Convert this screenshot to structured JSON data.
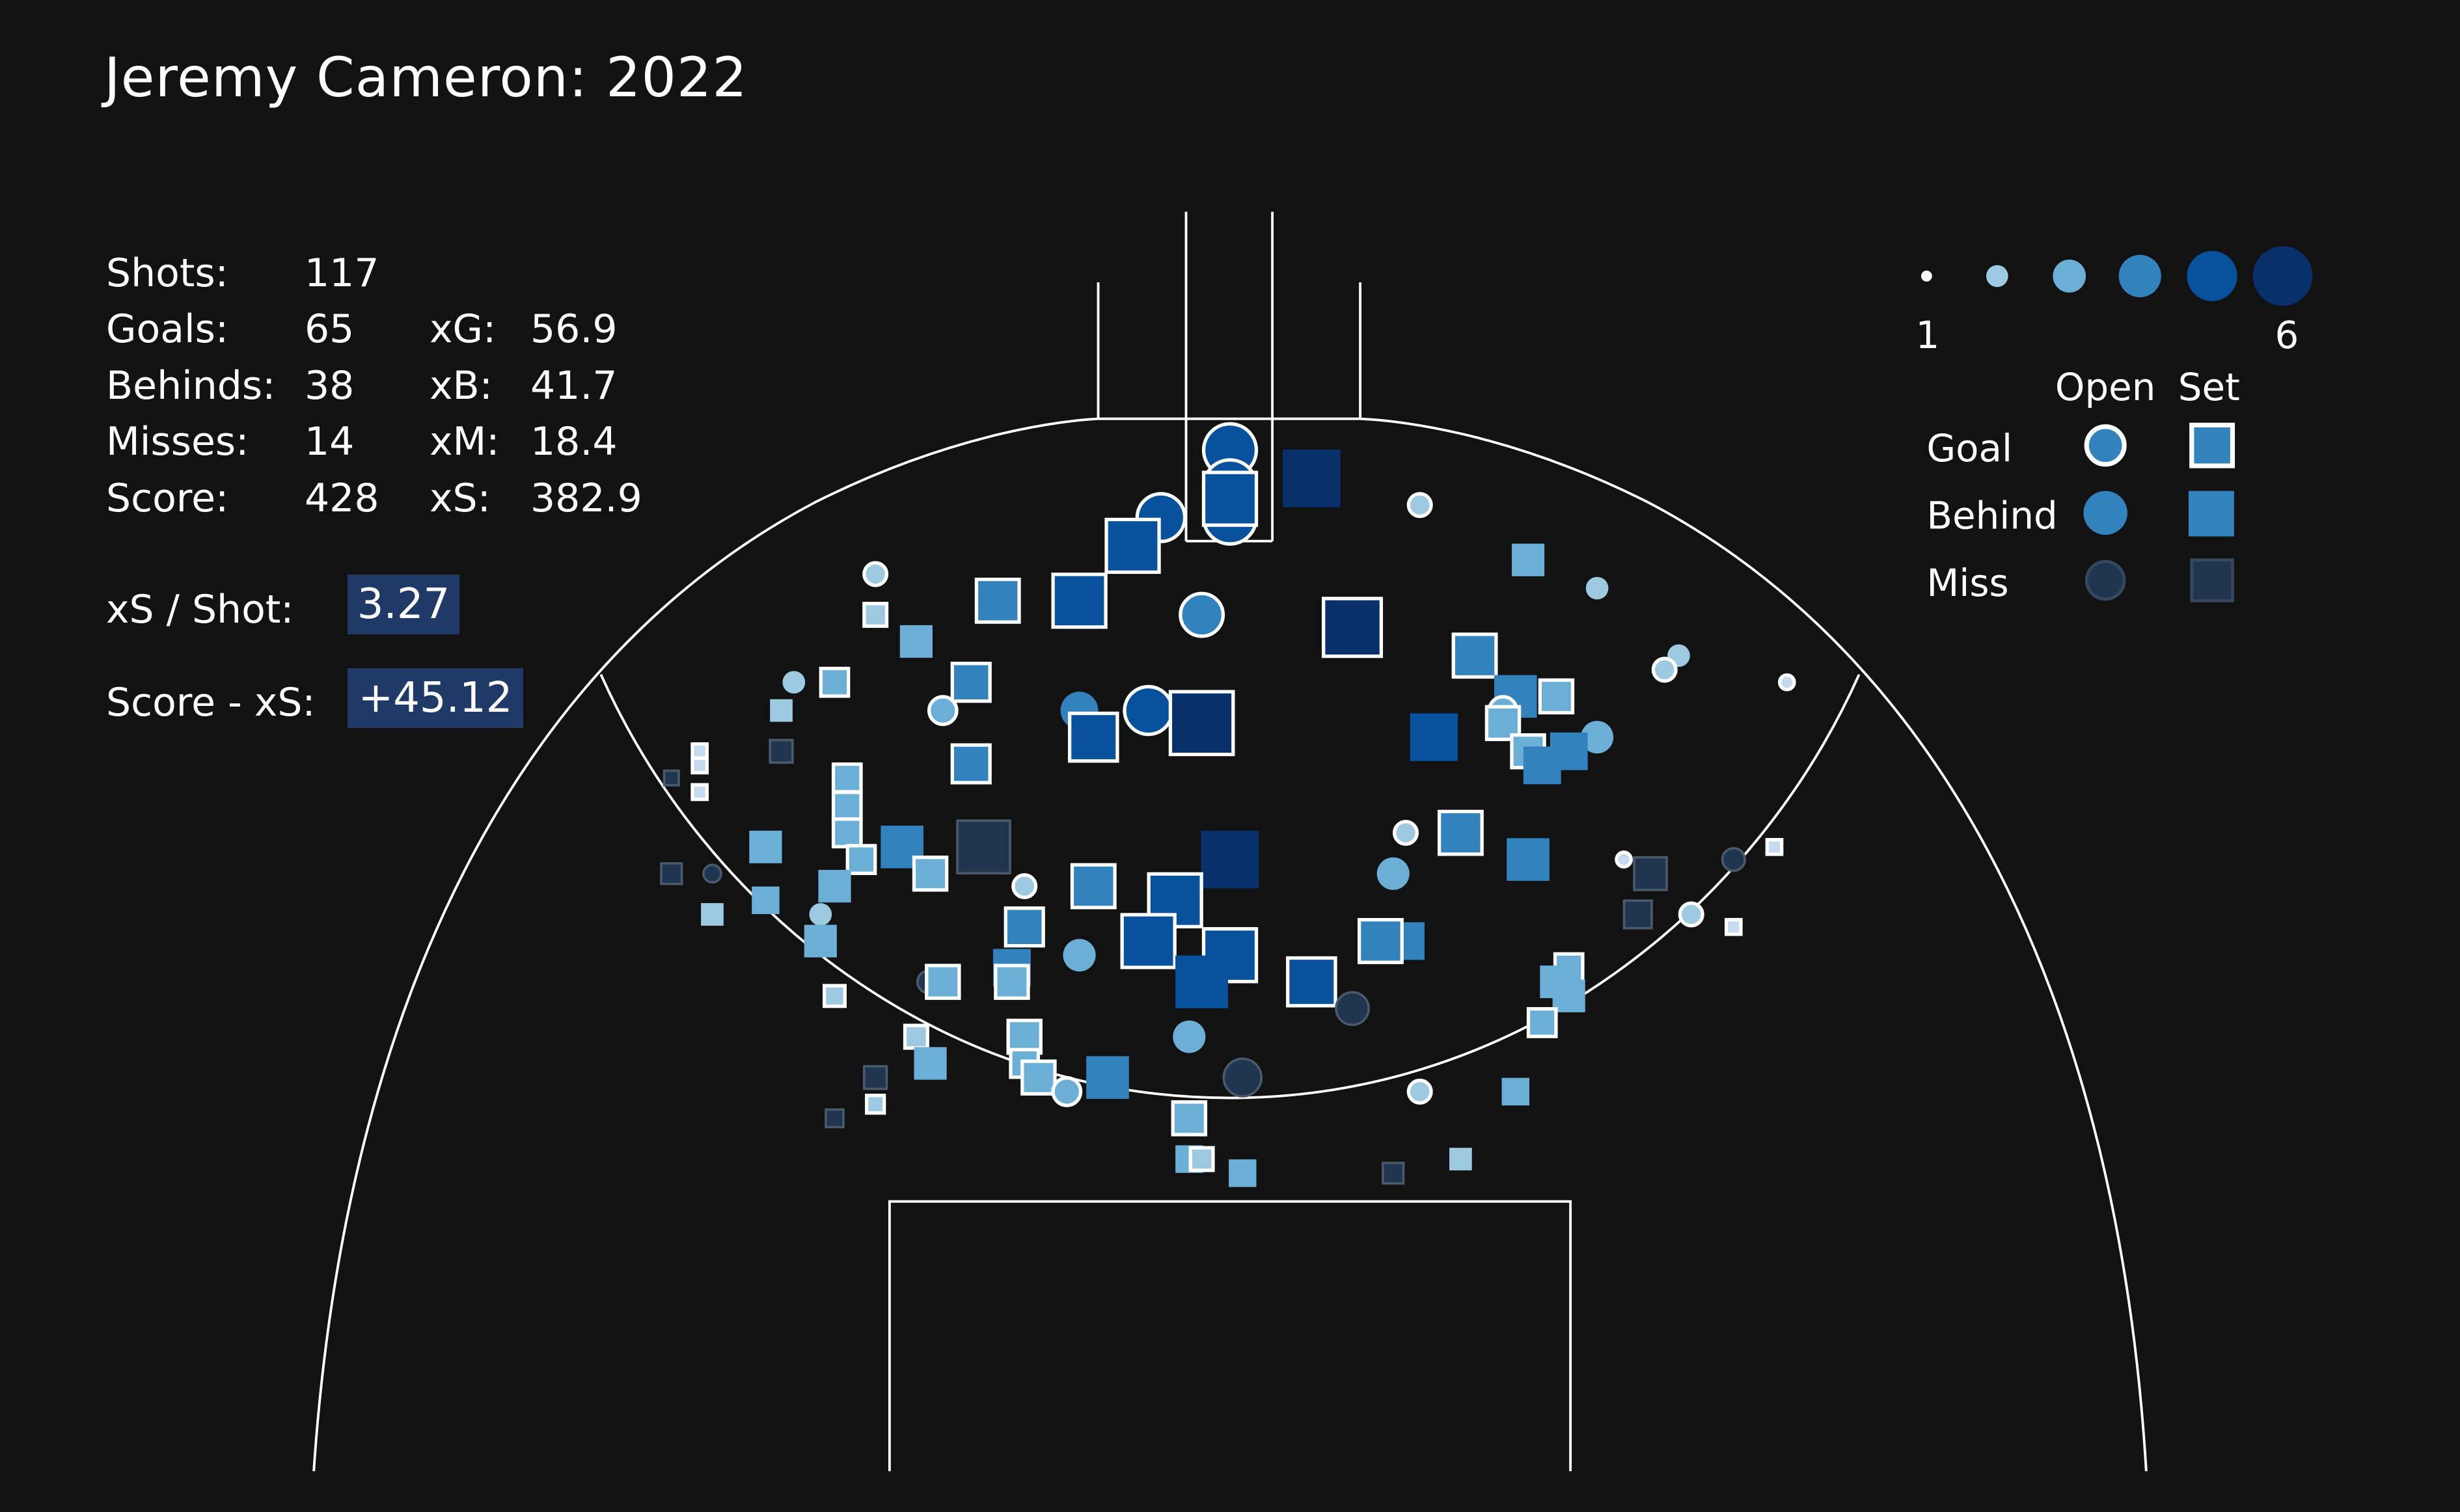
{
  "title": "Jeremy Cameron: 2022",
  "stats": {
    "shots_label": "Shots:",
    "shots": "117",
    "goals_label": "Goals:",
    "goals": "65",
    "behinds_label": "Behinds:",
    "behinds": "38",
    "misses_label": "Misses:",
    "misses": "14",
    "score_label": "Score:",
    "score": "428",
    "xg_label": "xG:",
    "xg": "56.9",
    "xb_label": "xB:",
    "xb": "41.7",
    "xm_label": "xM:",
    "xm": "18.4",
    "xs_label": "xS:",
    "xs": "382.9",
    "xs_per_shot_label": "xS / Shot:",
    "xs_per_shot": "3.27",
    "score_minus_xs_label": "Score - xS:",
    "score_minus_xs": "+45.12"
  },
  "legend": {
    "size_min_label": "1",
    "size_max_label": "6",
    "open_label": "Open",
    "set_label": "Set",
    "goal_label": "Goal",
    "behind_label": "Behind",
    "miss_label": "Miss"
  },
  "colors": {
    "background": "#121212",
    "field_lines": "#ffffff",
    "highlight_box": "#1f3a66",
    "value_scale": [
      "#c6dbef",
      "#9ecae1",
      "#6baed6",
      "#3182bd",
      "#08519c",
      "#08306b"
    ],
    "miss": "#1f3550"
  },
  "chart_data": {
    "type": "scatter",
    "description_axes": "shot locations on the attacking half of the ground; size and colour encode expected score value 1-6",
    "value_range": [
      1,
      6
    ],
    "series": [
      {
        "name": "Goal",
        "marker_open": "circle",
        "marker_set": "square"
      },
      {
        "name": "Behind",
        "marker_open": "circle",
        "marker_set": "square"
      },
      {
        "name": "Miss",
        "marker_open": "circle",
        "marker_set": "square"
      }
    ],
    "points": [
      {
        "x": 784,
        "y": 287,
        "v": 5,
        "t": "g",
        "k": "o"
      },
      {
        "x": 784,
        "y": 310,
        "v": 5,
        "t": "g",
        "k": "o"
      },
      {
        "x": 784,
        "y": 330,
        "v": 5,
        "t": "g",
        "k": "o"
      },
      {
        "x": 740,
        "y": 330,
        "v": 4.5,
        "t": "g",
        "k": "o"
      },
      {
        "x": 784,
        "y": 318,
        "v": 5,
        "t": "g",
        "k": "s"
      },
      {
        "x": 836,
        "y": 305,
        "v": 5.5,
        "t": "b",
        "k": "s"
      },
      {
        "x": 905,
        "y": 322,
        "v": 2,
        "t": "g",
        "k": "o"
      },
      {
        "x": 722,
        "y": 348,
        "v": 5,
        "t": "g",
        "k": "s"
      },
      {
        "x": 558,
        "y": 366,
        "v": 2,
        "t": "g",
        "k": "o"
      },
      {
        "x": 974,
        "y": 357,
        "v": 3,
        "t": "b",
        "k": "s"
      },
      {
        "x": 1018,
        "y": 375,
        "v": 2,
        "t": "b",
        "k": "o"
      },
      {
        "x": 636,
        "y": 383,
        "v": 4,
        "t": "g",
        "k": "s"
      },
      {
        "x": 688,
        "y": 383,
        "v": 5,
        "t": "g",
        "k": "s"
      },
      {
        "x": 766,
        "y": 392,
        "v": 4,
        "t": "g",
        "k": "o"
      },
      {
        "x": 558,
        "y": 392,
        "v": 2,
        "t": "g",
        "k": "s"
      },
      {
        "x": 862,
        "y": 400,
        "v": 5.5,
        "t": "g",
        "k": "s"
      },
      {
        "x": 584,
        "y": 409,
        "v": 3,
        "t": "b",
        "k": "s"
      },
      {
        "x": 940,
        "y": 418,
        "v": 4,
        "t": "g",
        "k": "s"
      },
      {
        "x": 1070,
        "y": 418,
        "v": 2,
        "t": "b",
        "k": "o"
      },
      {
        "x": 1061,
        "y": 427,
        "v": 2,
        "t": "g",
        "k": "o"
      },
      {
        "x": 1139,
        "y": 435,
        "v": 1.2,
        "t": "g",
        "k": "o"
      },
      {
        "x": 506,
        "y": 435,
        "v": 2,
        "t": "b",
        "k": "o"
      },
      {
        "x": 532,
        "y": 435,
        "v": 2.5,
        "t": "g",
        "k": "s"
      },
      {
        "x": 619,
        "y": 435,
        "v": 3.5,
        "t": "g",
        "k": "s"
      },
      {
        "x": 966,
        "y": 444,
        "v": 4,
        "t": "b",
        "k": "s"
      },
      {
        "x": 992,
        "y": 444,
        "v": 3,
        "t": "g",
        "k": "s"
      },
      {
        "x": 498,
        "y": 453,
        "v": 2,
        "t": "b",
        "k": "s"
      },
      {
        "x": 601,
        "y": 453,
        "v": 2.5,
        "t": "g",
        "k": "o"
      },
      {
        "x": 688,
        "y": 453,
        "v": 3.5,
        "t": "b",
        "k": "o"
      },
      {
        "x": 732,
        "y": 453,
        "v": 4.5,
        "t": "g",
        "k": "o"
      },
      {
        "x": 958,
        "y": 453,
        "v": 2.5,
        "t": "g",
        "k": "o"
      },
      {
        "x": 697,
        "y": 470,
        "v": 4.5,
        "t": "g",
        "k": "s"
      },
      {
        "x": 766,
        "y": 461,
        "v": 6,
        "t": "g",
        "k": "s"
      },
      {
        "x": 914,
        "y": 470,
        "v": 4.5,
        "t": "b",
        "k": "s"
      },
      {
        "x": 958,
        "y": 461,
        "v": 3,
        "t": "g",
        "k": "s"
      },
      {
        "x": 1018,
        "y": 470,
        "v": 3,
        "t": "b",
        "k": "o"
      },
      {
        "x": 446,
        "y": 479,
        "v": 1.2,
        "t": "g",
        "k": "s"
      },
      {
        "x": 498,
        "y": 479,
        "v": 2,
        "t": "m",
        "k": "s"
      },
      {
        "x": 974,
        "y": 479,
        "v": 3,
        "t": "g",
        "k": "s"
      },
      {
        "x": 1000,
        "y": 479,
        "v": 3.5,
        "t": "b",
        "k": "s"
      },
      {
        "x": 983,
        "y": 488,
        "v": 3.5,
        "t": "b",
        "k": "s"
      },
      {
        "x": 619,
        "y": 487,
        "v": 3.5,
        "t": "g",
        "k": "s"
      },
      {
        "x": 446,
        "y": 488,
        "v": 1.2,
        "t": "g",
        "k": "s"
      },
      {
        "x": 428,
        "y": 496,
        "v": 1.2,
        "t": "m",
        "k": "s"
      },
      {
        "x": 540,
        "y": 496,
        "v": 2.5,
        "t": "g",
        "k": "s"
      },
      {
        "x": 446,
        "y": 505,
        "v": 1.2,
        "t": "g",
        "k": "s"
      },
      {
        "x": 540,
        "y": 514,
        "v": 2.5,
        "t": "g",
        "k": "s"
      },
      {
        "x": 896,
        "y": 531,
        "v": 2,
        "t": "g",
        "k": "o"
      },
      {
        "x": 931,
        "y": 531,
        "v": 4,
        "t": "g",
        "k": "s"
      },
      {
        "x": 540,
        "y": 531,
        "v": 2.5,
        "t": "g",
        "k": "s"
      },
      {
        "x": 488,
        "y": 540,
        "v": 3,
        "t": "b",
        "k": "s"
      },
      {
        "x": 575,
        "y": 540,
        "v": 4,
        "t": "b",
        "k": "s"
      },
      {
        "x": 627,
        "y": 540,
        "v": 5,
        "t": "m",
        "k": "s"
      },
      {
        "x": 1131,
        "y": 540,
        "v": 1.2,
        "t": "g",
        "k": "s"
      },
      {
        "x": 784,
        "y": 548,
        "v": 5.5,
        "t": "b",
        "k": "s"
      },
      {
        "x": 974,
        "y": 548,
        "v": 4,
        "t": "b",
        "k": "s"
      },
      {
        "x": 549,
        "y": 548,
        "v": 2.5,
        "t": "g",
        "k": "s"
      },
      {
        "x": 1035,
        "y": 548,
        "v": 1.2,
        "t": "g",
        "k": "o"
      },
      {
        "x": 1105,
        "y": 548,
        "v": 2,
        "t": "m",
        "k": "o"
      },
      {
        "x": 1052,
        "y": 557,
        "v": 3,
        "t": "m",
        "k": "s"
      },
      {
        "x": 428,
        "y": 557,
        "v": 1.8,
        "t": "m",
        "k": "s"
      },
      {
        "x": 454,
        "y": 557,
        "v": 1.5,
        "t": "m",
        "k": "o"
      },
      {
        "x": 593,
        "y": 557,
        "v": 3,
        "t": "g",
        "k": "s"
      },
      {
        "x": 888,
        "y": 557,
        "v": 3,
        "t": "b",
        "k": "o"
      },
      {
        "x": 697,
        "y": 565,
        "v": 4,
        "t": "g",
        "k": "s"
      },
      {
        "x": 653,
        "y": 565,
        "v": 2,
        "t": "g",
        "k": "o"
      },
      {
        "x": 532,
        "y": 565,
        "v": 3,
        "t": "b",
        "k": "s"
      },
      {
        "x": 749,
        "y": 574,
        "v": 5,
        "t": "g",
        "k": "s"
      },
      {
        "x": 488,
        "y": 574,
        "v": 2.5,
        "t": "b",
        "k": "s"
      },
      {
        "x": 454,
        "y": 583,
        "v": 2,
        "t": "b",
        "k": "s"
      },
      {
        "x": 523,
        "y": 583,
        "v": 2,
        "t": "b",
        "k": "o"
      },
      {
        "x": 1044,
        "y": 583,
        "v": 2.5,
        "t": "m",
        "k": "s"
      },
      {
        "x": 1078,
        "y": 583,
        "v": 2,
        "t": "g",
        "k": "o"
      },
      {
        "x": 653,
        "y": 591,
        "v": 3.5,
        "t": "g",
        "k": "s"
      },
      {
        "x": 1105,
        "y": 591,
        "v": 1.2,
        "t": "g",
        "k": "s"
      },
      {
        "x": 523,
        "y": 600,
        "v": 3,
        "t": "b",
        "k": "s"
      },
      {
        "x": 732,
        "y": 600,
        "v": 5,
        "t": "g",
        "k": "s"
      },
      {
        "x": 896,
        "y": 600,
        "v": 3.5,
        "t": "b",
        "k": "s"
      },
      {
        "x": 880,
        "y": 600,
        "v": 4,
        "t": "g",
        "k": "s"
      },
      {
        "x": 688,
        "y": 609,
        "v": 3,
        "t": "b",
        "k": "o"
      },
      {
        "x": 784,
        "y": 609,
        "v": 5,
        "t": "g",
        "k": "s"
      },
      {
        "x": 645,
        "y": 617,
        "v": 3.5,
        "t": "b",
        "k": "s"
      },
      {
        "x": 1000,
        "y": 617,
        "v": 2.5,
        "t": "g",
        "k": "s"
      },
      {
        "x": 766,
        "y": 626,
        "v": 5,
        "t": "b",
        "k": "s"
      },
      {
        "x": 836,
        "y": 626,
        "v": 4.5,
        "t": "g",
        "k": "s"
      },
      {
        "x": 592,
        "y": 626,
        "v": 2,
        "t": "m",
        "k": "o"
      },
      {
        "x": 601,
        "y": 626,
        "v": 3,
        "t": "g",
        "k": "s"
      },
      {
        "x": 645,
        "y": 626,
        "v": 3,
        "t": "g",
        "k": "s"
      },
      {
        "x": 992,
        "y": 626,
        "v": 3,
        "t": "b",
        "k": "s"
      },
      {
        "x": 532,
        "y": 635,
        "v": 1.8,
        "t": "g",
        "k": "s"
      },
      {
        "x": 1000,
        "y": 635,
        "v": 3,
        "t": "b",
        "k": "s"
      },
      {
        "x": 862,
        "y": 643,
        "v": 3,
        "t": "m",
        "k": "o"
      },
      {
        "x": 983,
        "y": 652,
        "v": 2.5,
        "t": "g",
        "k": "s"
      },
      {
        "x": 653,
        "y": 661,
        "v": 3,
        "t": "g",
        "k": "s"
      },
      {
        "x": 758,
        "y": 661,
        "v": 3,
        "t": "b",
        "k": "o"
      },
      {
        "x": 584,
        "y": 661,
        "v": 2,
        "t": "g",
        "k": "s"
      },
      {
        "x": 593,
        "y": 678,
        "v": 3,
        "t": "b",
        "k": "s"
      },
      {
        "x": 653,
        "y": 678,
        "v": 2.5,
        "t": "g",
        "k": "s"
      },
      {
        "x": 662,
        "y": 687,
        "v": 3,
        "t": "g",
        "k": "s"
      },
      {
        "x": 558,
        "y": 687,
        "v": 2,
        "t": "m",
        "k": "s"
      },
      {
        "x": 706,
        "y": 687,
        "v": 4,
        "t": "b",
        "k": "s"
      },
      {
        "x": 792,
        "y": 687,
        "v": 3.5,
        "t": "m",
        "k": "o"
      },
      {
        "x": 680,
        "y": 696,
        "v": 2.5,
        "t": "g",
        "k": "o"
      },
      {
        "x": 905,
        "y": 696,
        "v": 2,
        "t": "g",
        "k": "o"
      },
      {
        "x": 966,
        "y": 696,
        "v": 2.5,
        "t": "b",
        "k": "s"
      },
      {
        "x": 558,
        "y": 704,
        "v": 1.5,
        "t": "g",
        "k": "s"
      },
      {
        "x": 532,
        "y": 713,
        "v": 1.5,
        "t": "m",
        "k": "s"
      },
      {
        "x": 758,
        "y": 713,
        "v": 3,
        "t": "g",
        "k": "s"
      },
      {
        "x": 758,
        "y": 739,
        "v": 2.5,
        "t": "b",
        "k": "s"
      },
      {
        "x": 766,
        "y": 739,
        "v": 2,
        "t": "g",
        "k": "s"
      },
      {
        "x": 931,
        "y": 739,
        "v": 2,
        "t": "b",
        "k": "s"
      },
      {
        "x": 792,
        "y": 748,
        "v": 2.5,
        "t": "b",
        "k": "s"
      },
      {
        "x": 888,
        "y": 748,
        "v": 1.8,
        "t": "m",
        "k": "s"
      }
    ]
  }
}
